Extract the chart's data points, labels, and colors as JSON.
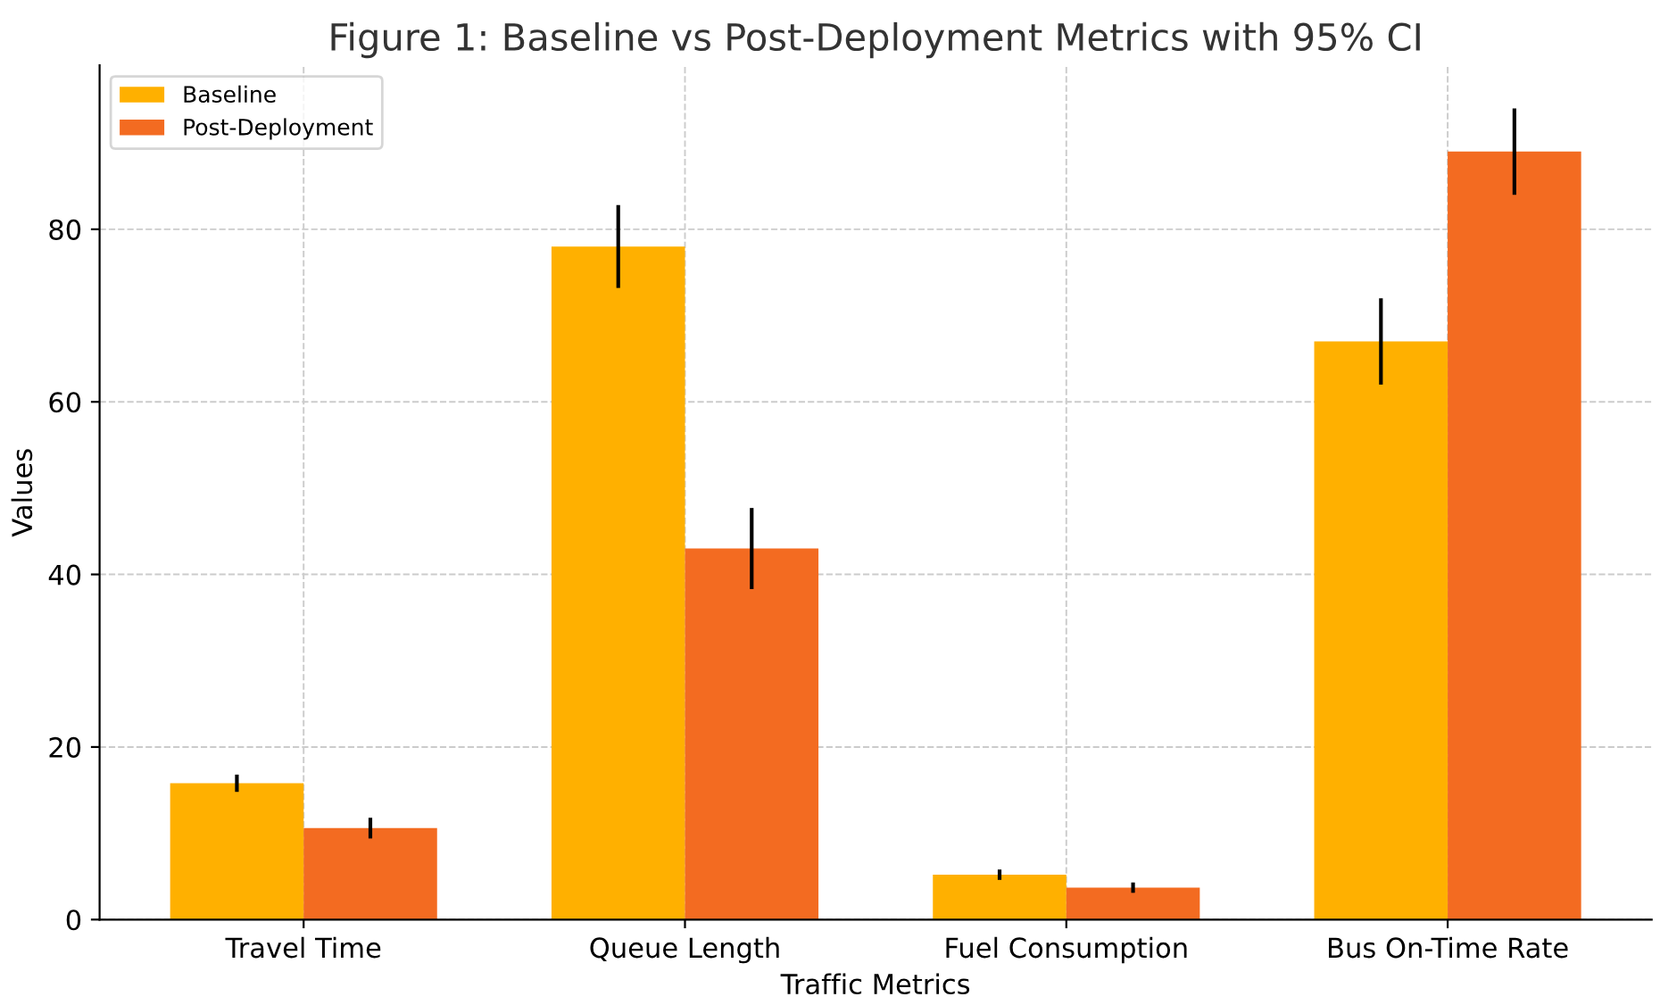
{
  "chart_data": {
    "type": "bar",
    "title": "Figure 1: Baseline vs Post-Deployment Metrics with 95% CI",
    "xlabel": "Traffic Metrics",
    "ylabel": "Values",
    "categories": [
      "Travel Time",
      "Queue Length",
      "Fuel Consumption",
      "Bus On-Time Rate"
    ],
    "series": [
      {
        "name": "Baseline",
        "color": "#ffb000",
        "values": [
          15.8,
          78,
          5.2,
          67
        ],
        "errors": [
          1,
          4.8,
          0.6,
          5
        ]
      },
      {
        "name": "Post-Deployment",
        "color": "#f36b21",
        "values": [
          10.6,
          43,
          3.7,
          89
        ],
        "errors": [
          1.2,
          4.7,
          0.6,
          5
        ]
      }
    ],
    "ylim": [
      0,
      99
    ],
    "yticks": [
      0,
      20,
      40,
      60,
      80
    ],
    "grid": true,
    "legend": "top left"
  }
}
